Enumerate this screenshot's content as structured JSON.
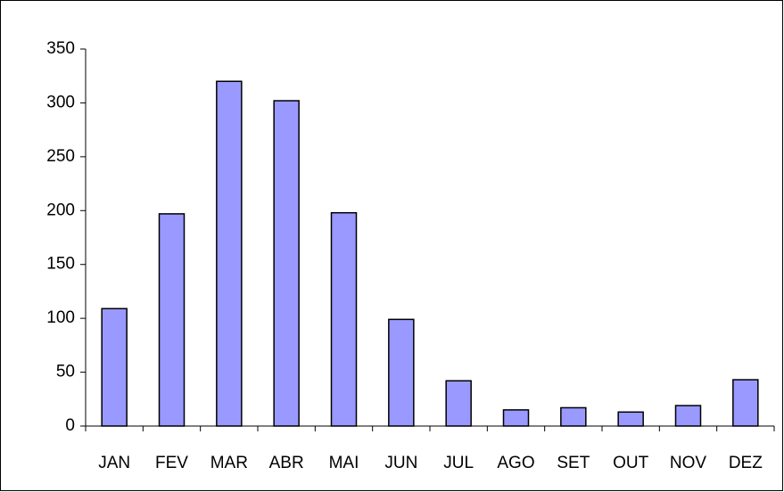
{
  "chart_data": {
    "type": "bar",
    "categories": [
      "JAN",
      "FEV",
      "MAR",
      "ABR",
      "MAI",
      "JUN",
      "JUL",
      "AGO",
      "SET",
      "OUT",
      "NOV",
      "DEZ"
    ],
    "values": [
      109,
      197,
      320,
      302,
      198,
      99,
      42,
      15,
      17,
      13,
      19,
      43
    ],
    "color": "#9999ff",
    "ylim": [
      0,
      350
    ],
    "yticks": [
      0,
      50,
      100,
      150,
      200,
      250,
      300,
      350
    ],
    "grid": false
  }
}
